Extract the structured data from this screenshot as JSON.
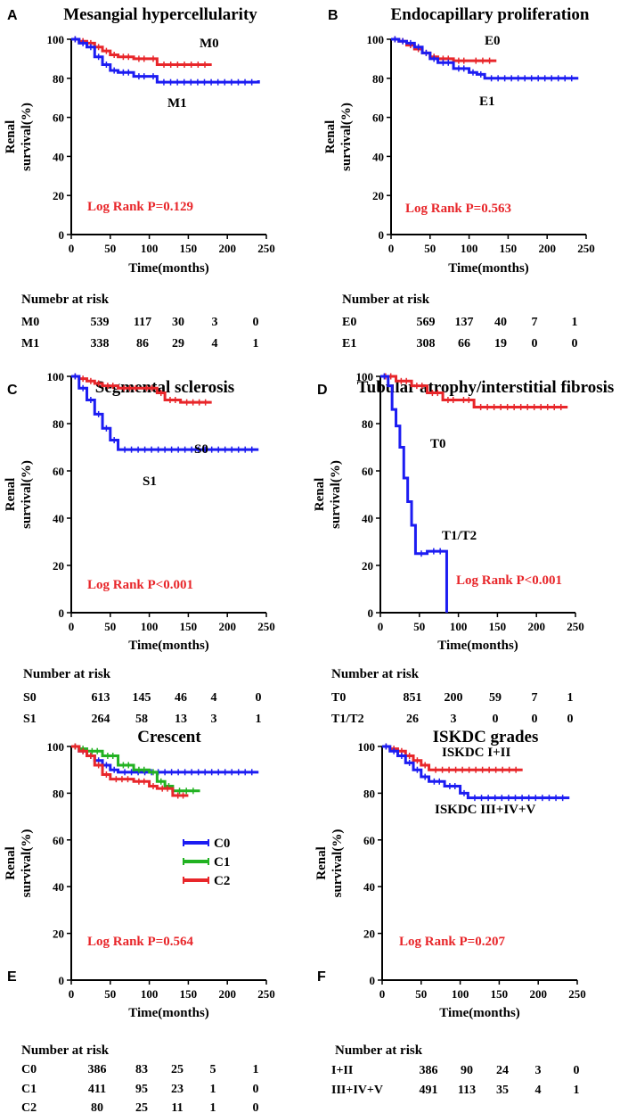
{
  "colors": {
    "red": "#e8262a",
    "blue": "#1c1cf2",
    "green": "#22b222",
    "black": "#000000"
  },
  "panels": [
    {
      "letter": "A",
      "title": "Mesangial hypercellularity",
      "ylabel1": "Renal",
      "ylabel2": "survival(%)",
      "xlabel": "Time(months)",
      "logrank": "Log Rank P=0.129",
      "curve_labels": [
        "M0",
        "M1"
      ],
      "risk_header": "Numebr at risk",
      "risk_rows": [
        {
          "label": "M0",
          "values": [
            "539",
            "117",
            "30",
            "3",
            "0"
          ]
        },
        {
          "label": "M1",
          "values": [
            "338",
            "86",
            "29",
            "4",
            "1"
          ]
        }
      ]
    },
    {
      "letter": "B",
      "title": "Endocapillary proliferation",
      "ylabel1": "Renal",
      "ylabel2": "survival(%)",
      "xlabel": "Time(months)",
      "logrank": "Log Rank P=0.563",
      "curve_labels": [
        "E0",
        "E1"
      ],
      "risk_header": "Number at risk",
      "risk_rows": [
        {
          "label": "E0",
          "values": [
            "569",
            "137",
            "40",
            "7",
            "1"
          ]
        },
        {
          "label": "E1",
          "values": [
            "308",
            "66",
            "19",
            "0",
            "0"
          ]
        }
      ]
    },
    {
      "letter": "C",
      "title": "Segmental sclerosis",
      "ylabel1": "Renal",
      "ylabel2": "survival(%)",
      "xlabel": "Time(months)",
      "logrank": "Log Rank P<0.001",
      "curve_labels": [
        "S0",
        "S1"
      ],
      "risk_header": "Number at risk",
      "risk_rows": [
        {
          "label": "S0",
          "values": [
            "613",
            "145",
            "46",
            "4",
            "0"
          ]
        },
        {
          "label": "S1",
          "values": [
            "264",
            "58",
            "13",
            "3",
            "1"
          ]
        }
      ]
    },
    {
      "letter": "D",
      "title": "Tubular atrophy/interstitial fibrosis",
      "ylabel1": "Renal",
      "ylabel2": "survival(%)",
      "xlabel": "Time(months)",
      "logrank": "Log Rank P<0.001",
      "curve_labels": [
        "T0",
        "T1/T2"
      ],
      "risk_header": "Number at risk",
      "risk_rows": [
        {
          "label": "T0",
          "values": [
            "851",
            "200",
            "59",
            "7",
            "1"
          ]
        },
        {
          "label": "T1/T2",
          "values": [
            "26",
            "3",
            "0",
            "0",
            "0"
          ]
        }
      ]
    },
    {
      "letter": "E",
      "title": "Crescent",
      "ylabel1": "Renal",
      "ylabel2": "survival(%)",
      "xlabel": "Time(months)",
      "logrank": "Log Rank P=0.564",
      "legend": [
        "C0",
        "C1",
        "C2"
      ],
      "risk_header": "Number at risk",
      "risk_rows": [
        {
          "label": "C0",
          "values": [
            "386",
            "83",
            "25",
            "5",
            "1"
          ]
        },
        {
          "label": "C1",
          "values": [
            "411",
            "95",
            "23",
            "1",
            "0"
          ]
        },
        {
          "label": "C2",
          "values": [
            "80",
            "25",
            "11",
            "1",
            "0"
          ]
        }
      ]
    },
    {
      "letter": "F",
      "title": "ISKDC grades",
      "ylabel1": "Renal",
      "ylabel2": "survival(%)",
      "xlabel": "Time(months)",
      "logrank": "Log Rank P=0.207",
      "curve_labels": [
        "ISKDC I+II",
        "ISKDC III+IV+V"
      ],
      "risk_header": "Number at risk",
      "risk_rows": [
        {
          "label": "I+II",
          "values": [
            "386",
            "90",
            "24",
            "3",
            "0"
          ]
        },
        {
          "label": "III+IV+V",
          "values": [
            "491",
            "113",
            "35",
            "4",
            "1"
          ]
        }
      ]
    }
  ],
  "chart_data": [
    {
      "type": "line",
      "title": "Mesangial hypercellularity",
      "xlabel": "Time(months)",
      "ylabel": "Renal survival(%)",
      "xlim": [
        0,
        250
      ],
      "ylim": [
        0,
        100
      ],
      "xticks": [
        0,
        50,
        100,
        150,
        200,
        250
      ],
      "yticks": [
        0,
        20,
        40,
        60,
        80,
        100
      ],
      "series": [
        {
          "name": "M0",
          "color": "red",
          "x": [
            0,
            10,
            20,
            30,
            40,
            50,
            60,
            80,
            100,
            110,
            180
          ],
          "y": [
            100,
            99,
            98,
            96,
            94,
            92,
            91,
            90,
            90,
            87,
            87
          ]
        },
        {
          "name": "M1",
          "color": "blue",
          "x": [
            0,
            10,
            20,
            30,
            40,
            50,
            60,
            80,
            100,
            110,
            240
          ],
          "y": [
            100,
            98,
            96,
            91,
            87,
            84,
            83,
            81,
            81,
            78,
            79
          ]
        }
      ]
    },
    {
      "type": "line",
      "title": "Endocapillary proliferation",
      "xlabel": "Time(months)",
      "ylabel": "Renal survival(%)",
      "xlim": [
        0,
        250
      ],
      "ylim": [
        0,
        100
      ],
      "xticks": [
        0,
        50,
        100,
        150,
        200,
        250
      ],
      "yticks": [
        0,
        20,
        40,
        60,
        80,
        100
      ],
      "series": [
        {
          "name": "E0",
          "color": "red",
          "x": [
            0,
            10,
            20,
            30,
            40,
            50,
            60,
            80,
            100,
            135
          ],
          "y": [
            100,
            99,
            97,
            95,
            93,
            91,
            90,
            89,
            89,
            89
          ]
        },
        {
          "name": "E1",
          "color": "blue",
          "x": [
            0,
            10,
            20,
            30,
            40,
            50,
            60,
            80,
            100,
            110,
            120,
            240
          ],
          "y": [
            100,
            99,
            98,
            96,
            93,
            90,
            88,
            85,
            83,
            82,
            80,
            80
          ]
        }
      ]
    },
    {
      "type": "line",
      "title": "Segmental sclerosis",
      "xlabel": "Time(months)",
      "ylabel": "Renal survival(%)",
      "xlim": [
        0,
        250
      ],
      "ylim": [
        0,
        100
      ],
      "xticks": [
        0,
        50,
        100,
        150,
        200,
        250
      ],
      "yticks": [
        0,
        20,
        40,
        60,
        80,
        100
      ],
      "series": [
        {
          "name": "S0",
          "color": "red",
          "x": [
            0,
            10,
            20,
            30,
            40,
            60,
            90,
            110,
            120,
            140,
            180
          ],
          "y": [
            100,
            99,
            98,
            97,
            96,
            95,
            95,
            93,
            90,
            89,
            89
          ]
        },
        {
          "name": "S1",
          "color": "blue",
          "x": [
            0,
            10,
            20,
            30,
            40,
            50,
            60,
            240
          ],
          "y": [
            100,
            95,
            90,
            84,
            78,
            73,
            69,
            69
          ]
        }
      ]
    },
    {
      "type": "line",
      "title": "Tubular atrophy/interstitial fibrosis",
      "xlabel": "Time(months)",
      "ylabel": "Renal survival(%)",
      "xlim": [
        0,
        250
      ],
      "ylim": [
        0,
        100
      ],
      "xticks": [
        0,
        50,
        100,
        150,
        200,
        250
      ],
      "yticks": [
        0,
        20,
        40,
        60,
        80,
        100
      ],
      "series": [
        {
          "name": "T0",
          "color": "red",
          "x": [
            0,
            20,
            40,
            60,
            80,
            100,
            120,
            240
          ],
          "y": [
            100,
            98,
            96,
            93,
            90,
            90,
            87,
            87
          ]
        },
        {
          "name": "T1/T2",
          "color": "blue",
          "x": [
            0,
            10,
            15,
            20,
            25,
            30,
            35,
            40,
            45,
            60,
            85,
            85
          ],
          "y": [
            100,
            96,
            86,
            79,
            70,
            57,
            47,
            37,
            25,
            26,
            25,
            0
          ]
        }
      ]
    },
    {
      "type": "line",
      "title": "Crescent",
      "xlabel": "Time(months)",
      "ylabel": "Renal survival(%)",
      "xlim": [
        0,
        250
      ],
      "ylim": [
        0,
        100
      ],
      "xticks": [
        0,
        50,
        100,
        150,
        200,
        250
      ],
      "yticks": [
        0,
        20,
        40,
        60,
        80,
        100
      ],
      "series": [
        {
          "name": "C0",
          "color": "blue",
          "x": [
            0,
            10,
            20,
            30,
            40,
            50,
            60,
            240
          ],
          "y": [
            100,
            98,
            96,
            94,
            92,
            90,
            89,
            89
          ]
        },
        {
          "name": "C1",
          "color": "green",
          "x": [
            0,
            10,
            20,
            40,
            60,
            80,
            100,
            110,
            120,
            130,
            165
          ],
          "y": [
            100,
            99,
            98,
            96,
            92,
            90,
            89,
            85,
            83,
            81,
            81
          ]
        },
        {
          "name": "C2",
          "color": "red",
          "x": [
            0,
            10,
            20,
            30,
            40,
            50,
            80,
            100,
            110,
            130,
            150
          ],
          "y": [
            100,
            98,
            96,
            92,
            88,
            86,
            85,
            83,
            82,
            79,
            79
          ]
        }
      ]
    },
    {
      "type": "line",
      "title": "ISKDC grades",
      "xlabel": "Time(months)",
      "ylabel": "Renal survival(%)",
      "xlim": [
        0,
        250
      ],
      "ylim": [
        0,
        100
      ],
      "xticks": [
        0,
        50,
        100,
        150,
        200,
        250
      ],
      "yticks": [
        0,
        20,
        40,
        60,
        80,
        100
      ],
      "series": [
        {
          "name": "ISKDC I+II",
          "color": "red",
          "x": [
            0,
            10,
            20,
            30,
            40,
            50,
            60,
            180
          ],
          "y": [
            100,
            99,
            98,
            96,
            94,
            92,
            90,
            90
          ]
        },
        {
          "name": "ISKDC III+IV+V",
          "color": "blue",
          "x": [
            0,
            10,
            20,
            30,
            40,
            50,
            60,
            80,
            100,
            110,
            240
          ],
          "y": [
            100,
            98,
            96,
            93,
            90,
            87,
            85,
            83,
            80,
            78,
            78
          ]
        }
      ]
    }
  ]
}
